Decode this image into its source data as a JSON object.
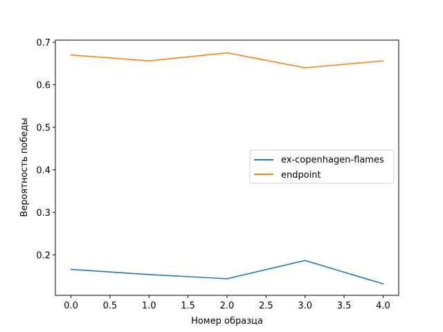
{
  "chart_data": {
    "type": "line",
    "title": "",
    "xlabel": "Номер образца",
    "ylabel": "Вероятность победы",
    "x": [
      0,
      1,
      2,
      3,
      4
    ],
    "xlim": [
      -0.2,
      4.2
    ],
    "ylim": [
      0.105,
      0.705
    ],
    "xticks": [
      "0.0",
      "0.5",
      "1.0",
      "1.5",
      "2.0",
      "2.5",
      "3.0",
      "3.5",
      "4.0"
    ],
    "yticks": [
      "0.2",
      "0.3",
      "0.4",
      "0.5",
      "0.6",
      "0.7"
    ],
    "grid": false,
    "legend_position": "center-right",
    "series": [
      {
        "name": "ex-copenhagen-flames",
        "color": "#1f77b4",
        "values": [
          0.166,
          0.154,
          0.144,
          0.187,
          0.132
        ]
      },
      {
        "name": "endpoint",
        "color": "#ff7f0e",
        "values": [
          0.67,
          0.656,
          0.675,
          0.64,
          0.656
        ]
      }
    ]
  }
}
